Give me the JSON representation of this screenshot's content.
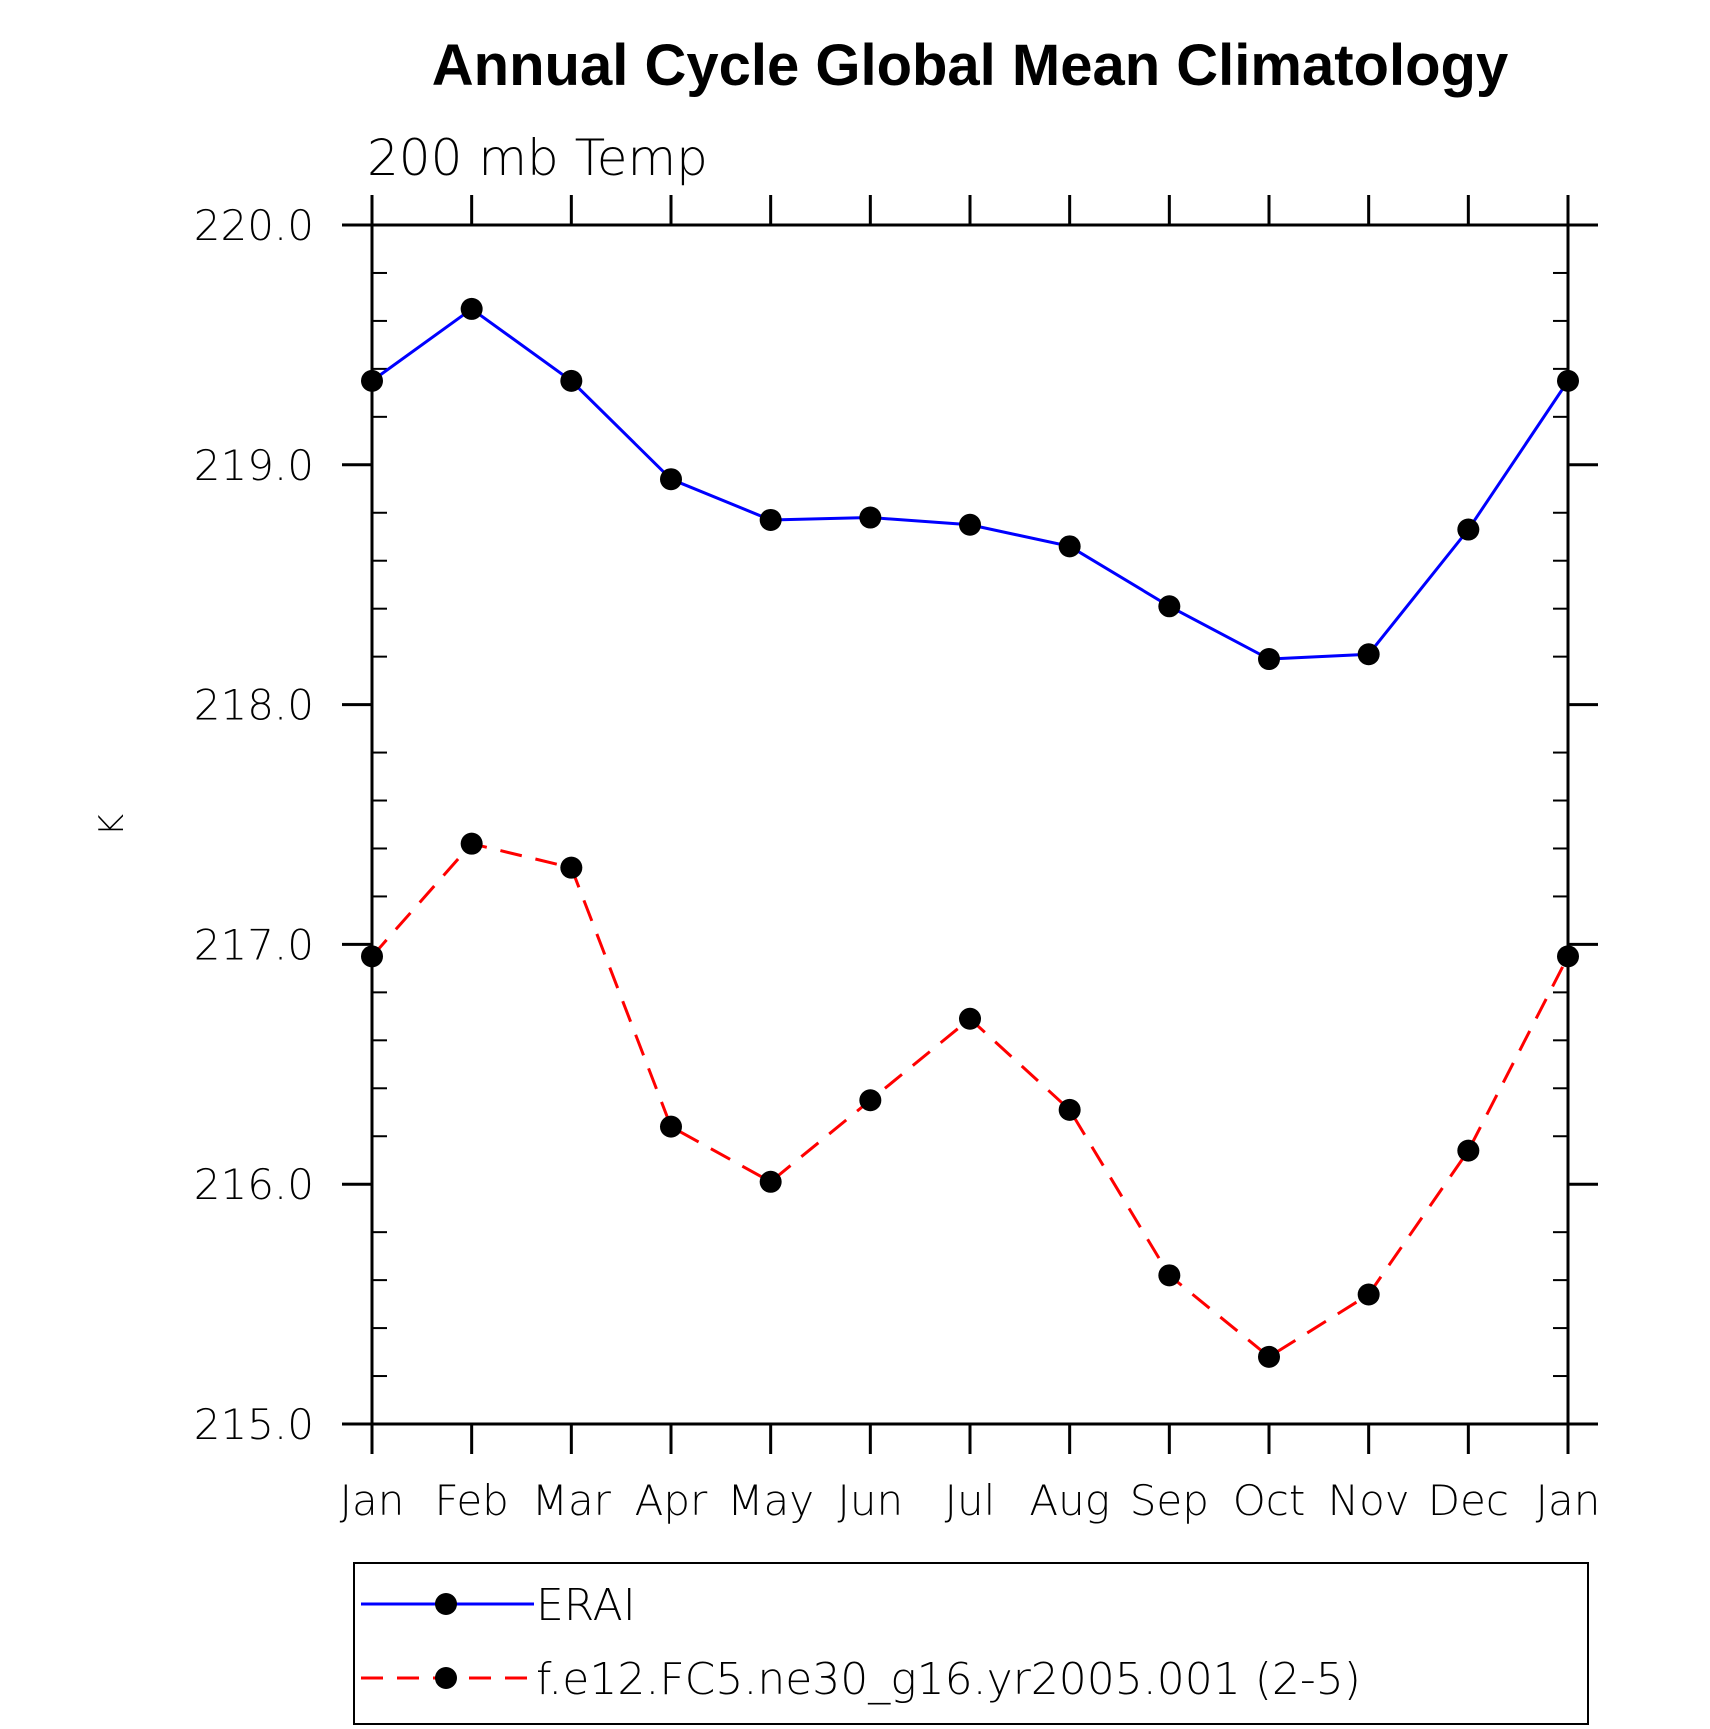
{
  "chart_data": {
    "type": "line",
    "title": "Annual Cycle Global Mean Climatology",
    "subtitle": "200 mb Temp",
    "xlabel": "",
    "ylabel": "K",
    "categories": [
      "Jan",
      "Feb",
      "Mar",
      "Apr",
      "May",
      "Jun",
      "Jul",
      "Aug",
      "Sep",
      "Oct",
      "Nov",
      "Dec",
      "Jan"
    ],
    "y_ticks": [
      "215.0",
      "216.0",
      "217.0",
      "218.0",
      "219.0",
      "220.0"
    ],
    "ylim": [
      215.0,
      220.0
    ],
    "y_minor_step": 0.2,
    "grid": false,
    "legend_position": "bottom",
    "series": [
      {
        "name": "ERAI",
        "color": "#0000ff",
        "line_style": "solid",
        "marker": "filled-circle",
        "values": [
          219.35,
          219.65,
          219.35,
          218.94,
          218.77,
          218.78,
          218.75,
          218.66,
          218.41,
          218.19,
          218.21,
          218.73,
          219.35
        ]
      },
      {
        "name": "f.e12.FC5.ne30_g16.yr2005.001 (2-5)",
        "color": "#ff0000",
        "line_style": "dashed",
        "marker": "filled-circle",
        "values": [
          216.95,
          217.42,
          217.32,
          216.24,
          216.01,
          216.35,
          216.69,
          216.31,
          215.62,
          215.28,
          215.54,
          216.14,
          216.95
        ]
      }
    ]
  }
}
